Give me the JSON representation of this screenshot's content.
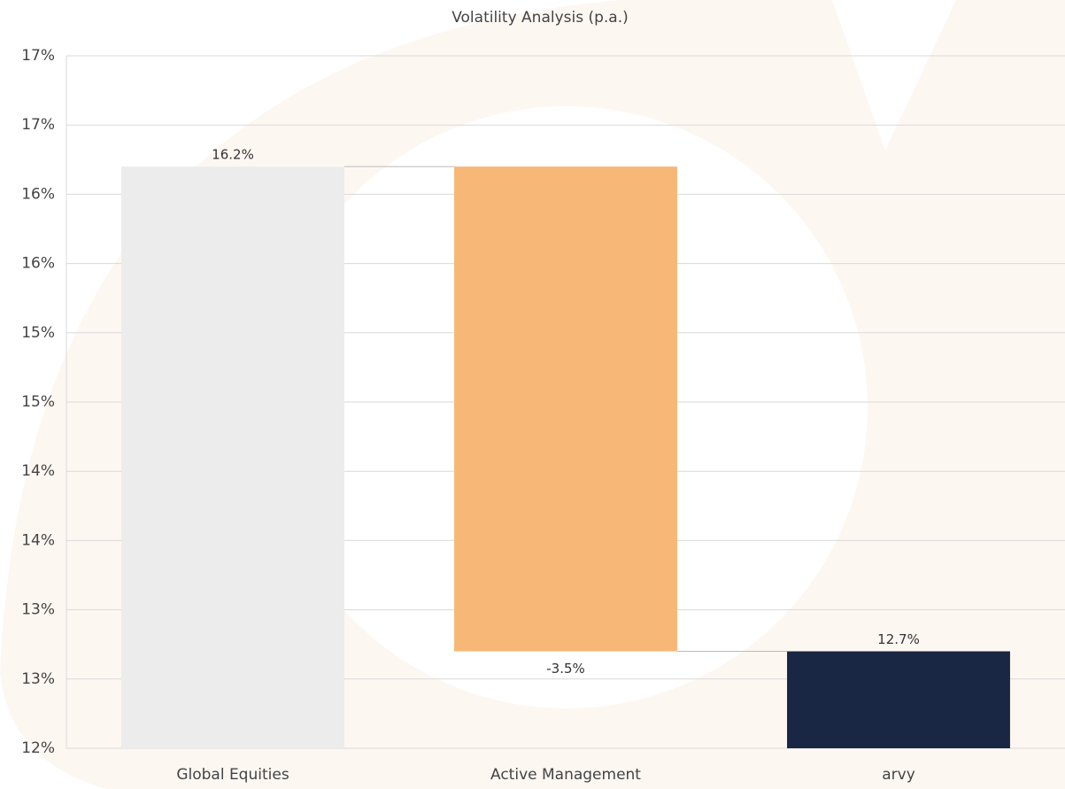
{
  "chart_data": {
    "type": "waterfall",
    "title": "Volatility Analysis (p.a.)",
    "categories": [
      "Global Equities",
      "Active Management",
      "arvy"
    ],
    "values": [
      16.2,
      -3.5,
      12.7
    ],
    "value_labels": [
      "16.2%",
      "-3.5%",
      "12.7%"
    ],
    "colors": [
      "#ececec",
      "#f6b777",
      "#1a2744"
    ],
    "ylim": [
      12,
      17
    ],
    "yticks": [
      {
        "value": 12,
        "label": "12%"
      },
      {
        "value": 12.5,
        "label": "13%"
      },
      {
        "value": 13,
        "label": "13%"
      },
      {
        "value": 13.5,
        "label": "14%"
      },
      {
        "value": 14,
        "label": "14%"
      },
      {
        "value": 14.5,
        "label": "15%"
      },
      {
        "value": 15,
        "label": "15%"
      },
      {
        "value": 15.5,
        "label": "16%"
      },
      {
        "value": 16,
        "label": "16%"
      },
      {
        "value": 16.5,
        "label": "17%"
      },
      {
        "value": 17,
        "label": "17%"
      }
    ],
    "grid": true
  }
}
